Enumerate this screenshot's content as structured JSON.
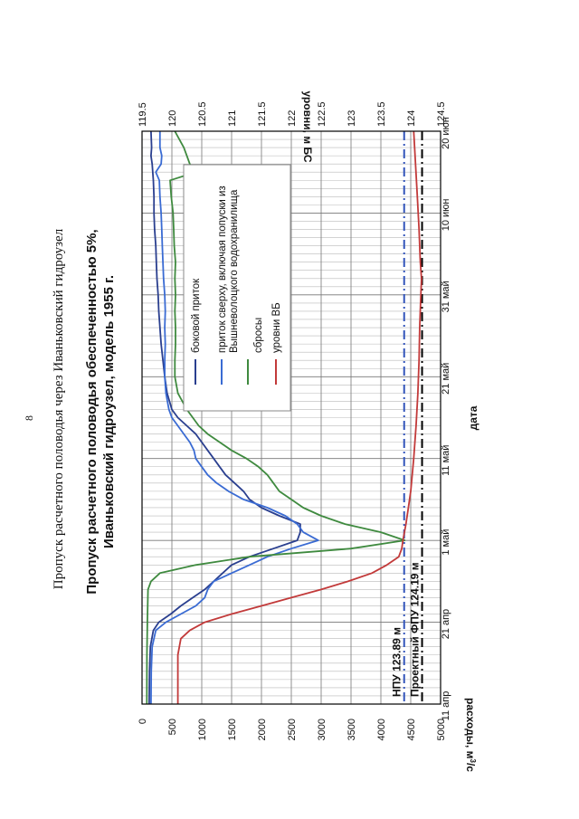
{
  "page_number": "8",
  "section_heading": "Пропуск расчетного половодья через Иваньковский гидроузел",
  "chart_data": {
    "type": "line",
    "title_line1": "Пропуск расчетного половодья обеспеченностью 5%,",
    "title_line2": "Иваньковский гидроузел, модель 1955 г.",
    "xlabel": "дата",
    "ylabel": "расходы, м3/с",
    "ylabel_main": "расходы, м",
    "ylabel_sup": "3",
    "ylabel_tail": "/с",
    "y2label": "уровни, м БС",
    "x_ticks": [
      {
        "day": 0,
        "label": "11 апр"
      },
      {
        "day": 10,
        "label": "21 апр"
      },
      {
        "day": 20,
        "label": "1 май"
      },
      {
        "day": 30,
        "label": "11 май"
      },
      {
        "day": 40,
        "label": "21 май"
      },
      {
        "day": 50,
        "label": "31 май"
      },
      {
        "day": 60,
        "label": "10 июн"
      },
      {
        "day": 70,
        "label": "20 июн"
      }
    ],
    "xlim": [
      0,
      70
    ],
    "ylim": [
      0,
      5000
    ],
    "y_ticks": [
      0,
      500,
      1000,
      1500,
      2000,
      2500,
      3000,
      3500,
      4000,
      4500,
      5000
    ],
    "y2lim": [
      119.5,
      124.5
    ],
    "y2_ticks": [
      119.5,
      120,
      120.5,
      121,
      121.5,
      122,
      122.5,
      123,
      123.5,
      124,
      124.5
    ],
    "reference_lines": [
      {
        "name": "fpu",
        "label": "Проектный ФПУ 124.19 м",
        "level": 124.19,
        "style": "dashdot",
        "color": "#000000"
      },
      {
        "name": "npu",
        "label": "НПУ 123.89 м",
        "level": 123.89,
        "style": "dashdot",
        "color": "#3355bb"
      }
    ],
    "series": [
      {
        "name": "lateral",
        "label": "боковой приток",
        "color": "#2a3f8f",
        "axis": "left",
        "points": [
          [
            0,
            120
          ],
          [
            4,
            125
          ],
          [
            7,
            140
          ],
          [
            9,
            190
          ],
          [
            10,
            280
          ],
          [
            11,
            480
          ],
          [
            12,
            650
          ],
          [
            13,
            850
          ],
          [
            14,
            1050
          ],
          [
            15,
            1200
          ],
          [
            16,
            1350
          ],
          [
            17,
            1500
          ],
          [
            18,
            1800
          ],
          [
            19,
            2200
          ],
          [
            20,
            2600
          ],
          [
            21,
            2650
          ],
          [
            22,
            2650
          ],
          [
            23,
            2300
          ],
          [
            24,
            2000
          ],
          [
            25,
            1800
          ],
          [
            26,
            1700
          ],
          [
            27,
            1550
          ],
          [
            28,
            1400
          ],
          [
            29,
            1300
          ],
          [
            30,
            1200
          ],
          [
            31,
            1100
          ],
          [
            32,
            1000
          ],
          [
            33,
            900
          ],
          [
            34,
            750
          ],
          [
            35,
            600
          ],
          [
            36,
            500
          ],
          [
            38,
            420
          ],
          [
            40,
            380
          ],
          [
            42,
            350
          ],
          [
            44,
            320
          ],
          [
            46,
            300
          ],
          [
            48,
            280
          ],
          [
            50,
            270
          ],
          [
            52,
            250
          ],
          [
            54,
            240
          ],
          [
            56,
            230
          ],
          [
            58,
            210
          ],
          [
            60,
            200
          ],
          [
            62,
            200
          ],
          [
            64,
            190
          ],
          [
            66,
            170
          ],
          [
            67,
            150
          ],
          [
            68,
            160
          ],
          [
            70,
            150
          ]
        ]
      },
      {
        "name": "inflow",
        "label": "приток сверху, включая попуски из Вышневолоцкого водохранилища",
        "color": "#3a6bd3",
        "axis": "left",
        "points": [
          [
            0,
            150
          ],
          [
            4,
            155
          ],
          [
            7,
            170
          ],
          [
            9,
            230
          ],
          [
            10,
            400
          ],
          [
            11,
            650
          ],
          [
            12,
            900
          ],
          [
            13,
            1050
          ],
          [
            14,
            1100
          ],
          [
            15,
            1200
          ],
          [
            16,
            1500
          ],
          [
            17,
            1800
          ],
          [
            18,
            2100
          ],
          [
            19,
            2500
          ],
          [
            20,
            2950
          ],
          [
            21,
            2700
          ],
          [
            22,
            2600
          ],
          [
            23,
            2400
          ],
          [
            24,
            2100
          ],
          [
            25,
            1700
          ],
          [
            26,
            1450
          ],
          [
            27,
            1250
          ],
          [
            28,
            1100
          ],
          [
            29,
            1000
          ],
          [
            30,
            900
          ],
          [
            31,
            870
          ],
          [
            32,
            800
          ],
          [
            33,
            700
          ],
          [
            34,
            600
          ],
          [
            35,
            500
          ],
          [
            36,
            450
          ],
          [
            38,
            400
          ],
          [
            40,
            380
          ],
          [
            42,
            380
          ],
          [
            44,
            390
          ],
          [
            46,
            380
          ],
          [
            48,
            390
          ],
          [
            50,
            380
          ],
          [
            52,
            360
          ],
          [
            54,
            350
          ],
          [
            56,
            340
          ],
          [
            58,
            330
          ],
          [
            60,
            320
          ],
          [
            62,
            300
          ],
          [
            64,
            290
          ],
          [
            65,
            230
          ],
          [
            66,
            320
          ],
          [
            67,
            330
          ],
          [
            68,
            300
          ],
          [
            70,
            300
          ]
        ]
      },
      {
        "name": "discharge",
        "label": "сбросы",
        "color": "#3f8a3f",
        "axis": "left",
        "points": [
          [
            0,
            80
          ],
          [
            6,
            82
          ],
          [
            10,
            90
          ],
          [
            14,
            100
          ],
          [
            15,
            150
          ],
          [
            16,
            300
          ],
          [
            17,
            900
          ],
          [
            18,
            1800
          ],
          [
            19,
            3500
          ],
          [
            20,
            4400
          ],
          [
            21,
            4000
          ],
          [
            22,
            3400
          ],
          [
            23,
            3000
          ],
          [
            24,
            2700
          ],
          [
            25,
            2500
          ],
          [
            26,
            2300
          ],
          [
            27,
            2200
          ],
          [
            28,
            2100
          ],
          [
            29,
            1950
          ],
          [
            30,
            1750
          ],
          [
            31,
            1500
          ],
          [
            32,
            1300
          ],
          [
            33,
            1100
          ],
          [
            34,
            950
          ],
          [
            35,
            850
          ],
          [
            36,
            750
          ],
          [
            38,
            600
          ],
          [
            40,
            550
          ],
          [
            42,
            550
          ],
          [
            44,
            560
          ],
          [
            46,
            560
          ],
          [
            48,
            550
          ],
          [
            50,
            560
          ],
          [
            52,
            550
          ],
          [
            54,
            560
          ],
          [
            56,
            540
          ],
          [
            58,
            530
          ],
          [
            60,
            520
          ],
          [
            62,
            490
          ],
          [
            64,
            470
          ],
          [
            65,
            900
          ],
          [
            66,
            800
          ],
          [
            67,
            750
          ],
          [
            68,
            700
          ],
          [
            70,
            550
          ]
        ]
      },
      {
        "name": "levels",
        "label": "уровни ВБ",
        "color": "#c23a3a",
        "axis": "right",
        "points": [
          [
            0,
            120.1
          ],
          [
            4,
            120.1
          ],
          [
            6,
            120.1
          ],
          [
            8,
            120.15
          ],
          [
            9,
            120.3
          ],
          [
            10,
            120.55
          ],
          [
            11,
            121.0
          ],
          [
            12,
            121.5
          ],
          [
            13,
            122.0
          ],
          [
            14,
            122.5
          ],
          [
            15,
            122.95
          ],
          [
            16,
            123.35
          ],
          [
            17,
            123.6
          ],
          [
            18,
            123.8
          ],
          [
            19,
            123.85
          ],
          [
            20,
            123.87
          ],
          [
            22,
            123.92
          ],
          [
            24,
            123.96
          ],
          [
            26,
            124.0
          ],
          [
            30,
            124.05
          ],
          [
            34,
            124.09
          ],
          [
            38,
            124.12
          ],
          [
            42,
            124.14
          ],
          [
            46,
            124.15
          ],
          [
            50,
            124.17
          ],
          [
            52,
            124.18
          ],
          [
            54,
            124.16
          ],
          [
            58,
            124.14
          ],
          [
            62,
            124.11
          ],
          [
            66,
            124.08
          ],
          [
            70,
            124.05
          ]
        ]
      }
    ]
  }
}
